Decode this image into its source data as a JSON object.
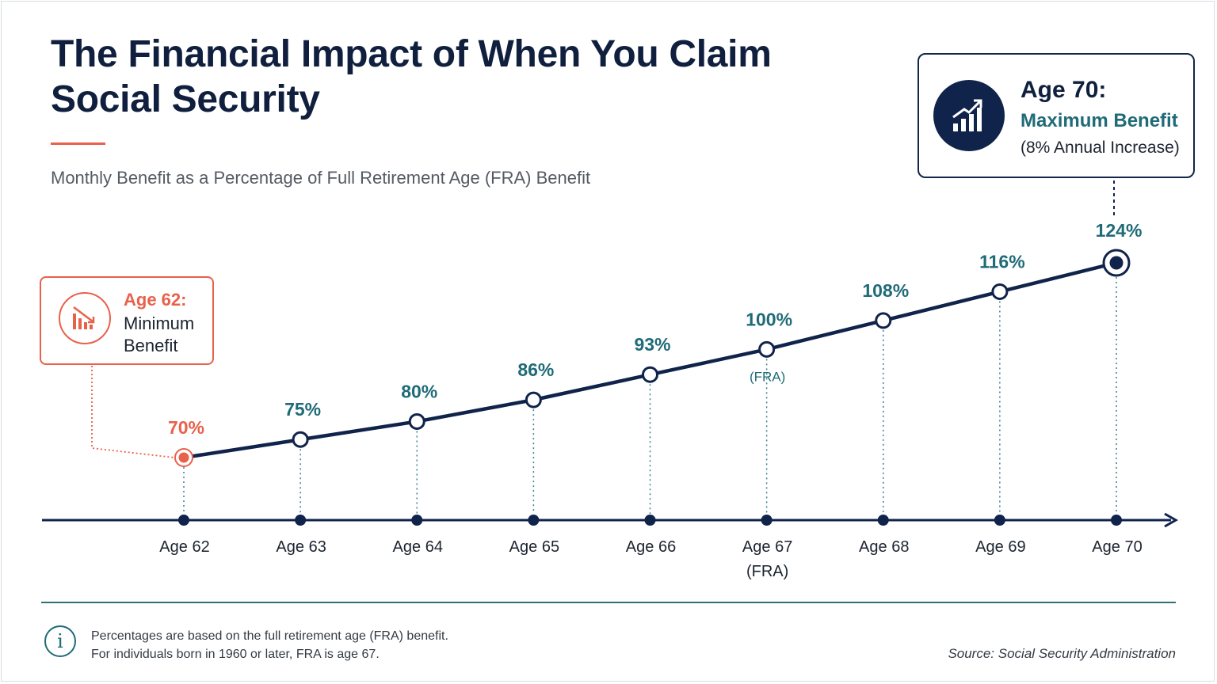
{
  "header": {
    "title": "The Financial Impact of When You Claim Social Security",
    "subtitle": "Monthly Benefit as a Percentage of Full Retirement Age (FRA) Benefit"
  },
  "callout_max": {
    "title": "Age 70:",
    "subtitle": "Maximum Benefit",
    "note": "(8% Annual Increase)",
    "icon": "growth-chart-icon"
  },
  "callout_min": {
    "title": "Age 62:",
    "line2": "Minimum",
    "line3": "Benefit",
    "icon": "decline-chart-icon"
  },
  "chart_data": {
    "type": "line",
    "x": [
      "Age 62",
      "Age 63",
      "Age 64",
      "Age 65",
      "Age 66",
      "Age 67",
      "Age 68",
      "Age 69",
      "Age 70"
    ],
    "x_sublabels": [
      "",
      "",
      "",
      "",
      "",
      "(FRA)",
      "",
      "",
      ""
    ],
    "values": [
      70,
      75,
      80,
      86,
      93,
      100,
      108,
      116,
      124
    ],
    "value_labels": [
      "70%",
      "75%",
      "80%",
      "86%",
      "93%",
      "100%",
      "108%",
      "116%",
      "124%"
    ],
    "point_annotations": [
      "",
      "",
      "",
      "",
      "",
      "(FRA)",
      "",
      "",
      ""
    ],
    "highlight_min_index": 0,
    "highlight_max_index": 8,
    "ylim": [
      70,
      124
    ],
    "grid": false,
    "legend": "none"
  },
  "footer": {
    "note_line1": "Percentages are based on the full retirement age (FRA) benefit.",
    "note_line2": "For individuals born in 1960 or later, FRA is age 67.",
    "source": "Source: Social Security Administration",
    "info_symbol": "i"
  },
  "colors": {
    "navy": "#10234a",
    "teal": "#1f6b78",
    "coral": "#e8614b",
    "text": "#1c2430"
  }
}
